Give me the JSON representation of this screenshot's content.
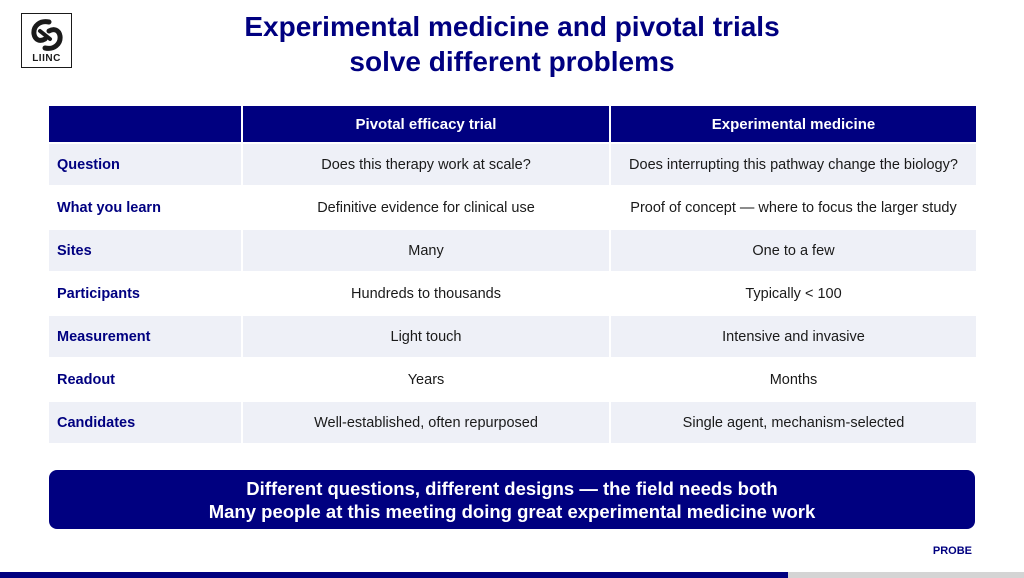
{
  "logo": {
    "text": "LIINC",
    "icon": "liinc-logo-icon"
  },
  "title": {
    "line1": "Experimental medicine and pivotal trials",
    "line2": "solve different problems"
  },
  "table": {
    "headers": [
      "",
      "Pivotal efficacy trial",
      "Experimental medicine"
    ],
    "rows": [
      {
        "label": "Question",
        "pivotal": "Does this therapy work at scale?",
        "experimental": "Does interrupting this pathway change the biology?"
      },
      {
        "label": "What you learn",
        "pivotal": "Definitive evidence for clinical use",
        "experimental": "Proof of concept — where to focus the larger study"
      },
      {
        "label": "Sites",
        "pivotal": "Many",
        "experimental": "One to a few"
      },
      {
        "label": "Participants",
        "pivotal": "Hundreds to thousands",
        "experimental": "Typically < 100"
      },
      {
        "label": "Measurement",
        "pivotal": "Light touch",
        "experimental": "Intensive and invasive"
      },
      {
        "label": "Readout",
        "pivotal": "Years",
        "experimental": "Months"
      },
      {
        "label": "Candidates",
        "pivotal": "Well-established, often repurposed",
        "experimental": "Single agent, mechanism-selected"
      }
    ]
  },
  "banner": {
    "line1": "Different questions, different designs — the field needs both",
    "line2": "Many people at this meeting doing great experimental medicine work"
  },
  "footer": {
    "label": "PROBE"
  },
  "colors": {
    "navy": "#000080",
    "row_tint": "#eef0f7",
    "footer_grey": "#d4d4d4"
  }
}
